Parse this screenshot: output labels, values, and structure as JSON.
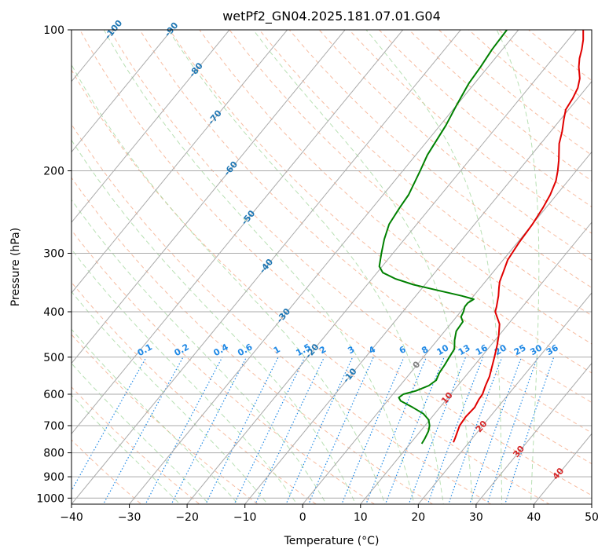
{
  "chart_data": {
    "type": "line",
    "title": "wetPf2_GN04.2025.181.07.01.G04",
    "xlabel": "Temperature (°C)",
    "ylabel": "Pressure (hPa)",
    "xlim": [
      -40,
      50
    ],
    "ylim": [
      1030,
      100
    ],
    "y_scale": "log",
    "x_ticks": [
      -40,
      -30,
      -20,
      -10,
      0,
      10,
      20,
      30,
      40,
      50
    ],
    "y_ticks": [
      100,
      200,
      300,
      400,
      500,
      600,
      700,
      800,
      900,
      1000
    ],
    "grid": true,
    "background_lines": {
      "isotherms_skewed": true,
      "dry_adiabats": "#f4a582",
      "moist_adiabats": "#a6d8a0",
      "mixing_ratio_lines": "#1e88e5"
    },
    "isotherm_labels": [
      "-100",
      "-90",
      "-80",
      "-70",
      "-60",
      "-50",
      "-40",
      "-30",
      "-20",
      "-10",
      "0",
      "10",
      "20",
      "30",
      "40"
    ],
    "mixing_ratio_labels": [
      "0.1",
      "0.2",
      "0.4",
      "0.6",
      "1",
      "1.5",
      "2",
      "3",
      "4",
      "6",
      "8",
      "10",
      "13",
      "16",
      "20",
      "25",
      "30",
      "36"
    ],
    "series": [
      {
        "color": "#e00000",
        "pressure": [
          760,
          745,
          700,
          670,
          640,
          615,
          600,
          575,
          550,
          500,
          470,
          450,
          425,
          400,
          390,
          370,
          355,
          345,
          330,
          310,
          300,
          285,
          260,
          240,
          225,
          210,
          200,
          190,
          175,
          165,
          155,
          148,
          140,
          133,
          127,
          120,
          115,
          110,
          105,
          100
        ],
        "temperature": [
          17.3,
          17.0,
          16.0,
          15.8,
          16.0,
          15.6,
          15.5,
          14.8,
          14.2,
          12.3,
          11.0,
          10.0,
          8.5,
          6.0,
          5.5,
          4.3,
          3.2,
          2.5,
          1.8,
          0.8,
          0.6,
          0.3,
          0.0,
          -0.5,
          -1.1,
          -2.1,
          -3.2,
          -4.5,
          -6.8,
          -8.0,
          -9.5,
          -10.5,
          -10.9,
          -11.5,
          -12.5,
          -14.3,
          -15.4,
          -16.3,
          -17.4,
          -18.8
        ]
      },
      {
        "color": "#008000",
        "pressure": [
          765,
          745,
          720,
          700,
          680,
          660,
          640,
          620,
          610,
          600,
          590,
          575,
          560,
          540,
          520,
          500,
          480,
          460,
          440,
          420,
          410,
          400,
          390,
          383,
          376,
          370,
          360,
          350,
          340,
          330,
          320,
          300,
          280,
          260,
          240,
          225,
          200,
          185,
          160,
          145,
          130,
          120,
          110,
          100
        ],
        "temperature": [
          12.0,
          11.8,
          11.4,
          10.8,
          9.8,
          8.0,
          5.3,
          2.3,
          1.5,
          1.8,
          3.5,
          5.0,
          5.5,
          5.0,
          4.8,
          4.5,
          4.2,
          3.0,
          2.0,
          1.8,
          0.8,
          0.5,
          0.0,
          0.0,
          0.5,
          -2.0,
          -7.0,
          -12.0,
          -16.0,
          -19.0,
          -20.5,
          -22.0,
          -23.5,
          -24.8,
          -25.3,
          -25.6,
          -27.0,
          -28.0,
          -29.0,
          -30.0,
          -31.0,
          -31.3,
          -31.8,
          -32.0
        ]
      }
    ]
  }
}
